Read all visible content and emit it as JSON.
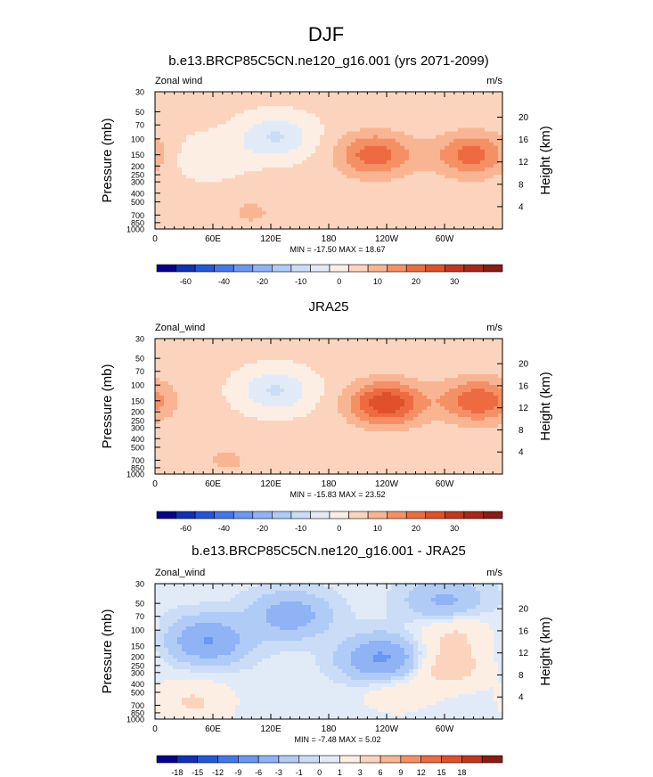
{
  "figure": {
    "title": "DJF"
  },
  "chart_data": [
    {
      "type": "contour",
      "title": "b.e13.BRCP85C5CN.ne120_g16.001 (yrs 2071-2099)",
      "left_label": "Zonal wind",
      "right_label": "m/s",
      "ylabel": "Pressure (mb)",
      "ylabel_right": "Height (km)",
      "x_ticks": [
        "0",
        "60E",
        "120E",
        "180",
        "120W",
        "60W"
      ],
      "x_lon": [
        0,
        60,
        120,
        180,
        240,
        300
      ],
      "xlim": [
        0,
        360
      ],
      "pressure_ticks": [
        "30",
        "50",
        "70",
        "100",
        "150",
        "200",
        "250",
        "300",
        "400",
        "500",
        "700",
        "850",
        "1000"
      ],
      "pressure_values": [
        30,
        50,
        70,
        100,
        150,
        200,
        250,
        300,
        400,
        500,
        700,
        850,
        1000
      ],
      "height_ticks": [
        "20",
        "16",
        "12",
        "8",
        "4"
      ],
      "height_values": [
        20,
        16,
        12,
        8,
        4
      ],
      "stats": "MIN = -17.50  MAX =  18.67",
      "min": -17.5,
      "max": 18.67,
      "colorbar": "full",
      "features": [
        {
          "lon": 125,
          "p": 95,
          "value": -12
        },
        {
          "lon": 55,
          "p": 160,
          "value": -6
        },
        {
          "lon": 228,
          "p": 150,
          "value": 17
        },
        {
          "lon": 328,
          "p": 150,
          "value": 16
        },
        {
          "lon": 100,
          "p": 650,
          "value": 4
        }
      ]
    },
    {
      "type": "contour",
      "title": "JRA25",
      "left_label": "Zonal_wind",
      "right_label": "m/s",
      "ylabel": "Pressure (mb)",
      "ylabel_right": "Height (km)",
      "x_ticks": [
        "0",
        "60E",
        "120E",
        "180",
        "120W",
        "60W"
      ],
      "x_lon": [
        0,
        60,
        120,
        180,
        240,
        300
      ],
      "xlim": [
        0,
        360
      ],
      "pressure_ticks": [
        "30",
        "50",
        "70",
        "100",
        "150",
        "200",
        "250",
        "300",
        "400",
        "500",
        "700",
        "850",
        "1000"
      ],
      "pressure_values": [
        30,
        50,
        70,
        100,
        150,
        200,
        250,
        300,
        400,
        500,
        700,
        850,
        1000
      ],
      "height_ticks": [
        "20",
        "16",
        "12",
        "8",
        "4"
      ],
      "height_values": [
        20,
        16,
        12,
        8,
        4
      ],
      "stats": "MIN = -15.83  MAX =  23.52",
      "min": -15.83,
      "max": 23.52,
      "colorbar": "full",
      "features": [
        {
          "lon": 125,
          "p": 115,
          "value": -12
        },
        {
          "lon": 240,
          "p": 160,
          "value": 23
        },
        {
          "lon": 335,
          "p": 150,
          "value": 18
        },
        {
          "lon": 75,
          "p": 700,
          "value": 4
        }
      ]
    },
    {
      "type": "contour",
      "title": "b.e13.BRCP85C5CN.ne120_g16.001 - JRA25",
      "left_label": "Zonal_wind",
      "right_label": "m/s",
      "ylabel": "Pressure (mb)",
      "ylabel_right": "Height (km)",
      "x_ticks": [
        "0",
        "60E",
        "120E",
        "180",
        "120W",
        "60W"
      ],
      "x_lon": [
        0,
        60,
        120,
        180,
        240,
        300
      ],
      "xlim": [
        0,
        360
      ],
      "pressure_ticks": [
        "30",
        "50",
        "70",
        "100",
        "150",
        "200",
        "250",
        "300",
        "400",
        "500",
        "700",
        "850",
        "1000"
      ],
      "pressure_values": [
        30,
        50,
        70,
        100,
        150,
        200,
        250,
        300,
        400,
        500,
        700,
        850,
        1000
      ],
      "height_ticks": [
        "20",
        "16",
        "12",
        "8",
        "4"
      ],
      "height_values": [
        20,
        16,
        12,
        8,
        4
      ],
      "stats": "MIN =  -7.48  MAX =   5.02",
      "min": -7.48,
      "max": 5.02,
      "colorbar": "diff",
      "features": [
        {
          "lon": 55,
          "p": 130,
          "value": -6.5
        },
        {
          "lon": 235,
          "p": 210,
          "value": -7
        },
        {
          "lon": 140,
          "p": 68,
          "value": -5
        },
        {
          "lon": 300,
          "p": 48,
          "value": -4
        },
        {
          "lon": 310,
          "p": 105,
          "value": 3
        },
        {
          "lon": 305,
          "p": 260,
          "value": 4
        },
        {
          "lon": 40,
          "p": 650,
          "value": 3
        },
        {
          "lon": 250,
          "p": 500,
          "value": 2
        }
      ]
    }
  ],
  "colorbars": {
    "full": {
      "labels": [
        "-60",
        "-40",
        "-20",
        "-10",
        "0",
        "10",
        "20",
        "30"
      ],
      "colors": [
        "#08008f",
        "#1030b8",
        "#2257dc",
        "#4477ee",
        "#6a97f2",
        "#8fb3f5",
        "#b0cbf6",
        "#cadcf6",
        "#e1ebf7",
        "#fdeee4",
        "#fcd4bd",
        "#f9b592",
        "#f59065",
        "#ee6b42",
        "#e0502a",
        "#c4361f",
        "#a8281a",
        "#8a1c12"
      ],
      "levels": [
        -70,
        -60,
        -50,
        -40,
        -30,
        -20,
        -15,
        -10,
        -5,
        0,
        5,
        10,
        15,
        20,
        25,
        30,
        35
      ]
    },
    "diff": {
      "labels": [
        "-18",
        "-15",
        "-12",
        "-9",
        "-6",
        "-3",
        "-1",
        "0",
        "1",
        "3",
        "6",
        "9",
        "12",
        "15",
        "18"
      ],
      "colors": [
        "#08008f",
        "#1030b8",
        "#2257dc",
        "#4477ee",
        "#6a97f2",
        "#8fb3f5",
        "#b0cbf6",
        "#cadcf6",
        "#e1ebf7",
        "#fdeee4",
        "#fcd4bd",
        "#f9b592",
        "#f59065",
        "#ee6b42",
        "#e0502a",
        "#c4361f",
        "#8a1c12"
      ],
      "levels": [
        -18,
        -15,
        -12,
        -9,
        -6,
        -3,
        -1,
        0,
        1,
        3,
        6,
        9,
        12,
        15,
        18
      ]
    }
  }
}
